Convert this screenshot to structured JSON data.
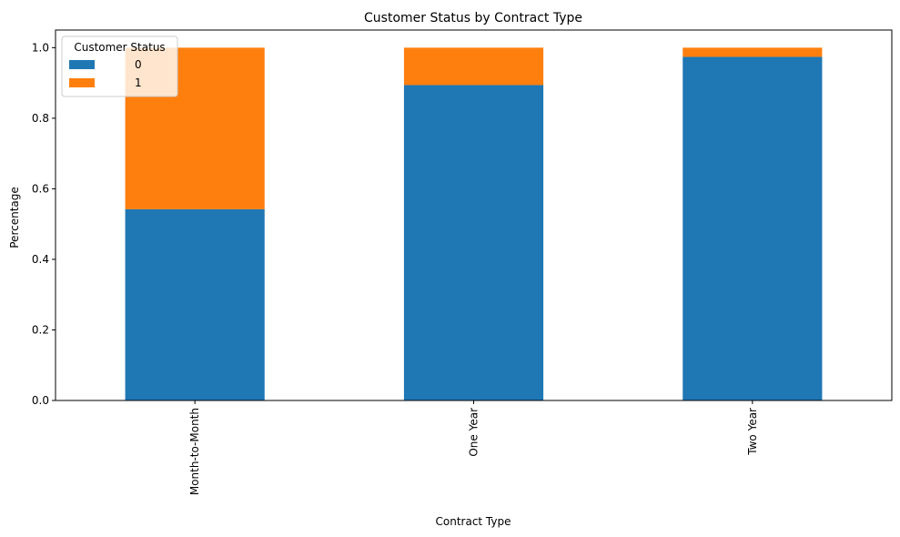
{
  "chart_data": {
    "type": "bar",
    "stacked": true,
    "title": "Customer Status by Contract Type",
    "xlabel": "Contract Type",
    "ylabel": "Percentage",
    "categories": [
      "Month-to-Month",
      "One Year",
      "Two Year"
    ],
    "series": [
      {
        "name": "0",
        "values": [
          0.542,
          0.894,
          0.974
        ],
        "color": "#1f77b4"
      },
      {
        "name": "1",
        "values": [
          0.458,
          0.106,
          0.026
        ],
        "color": "#ff7f0e"
      }
    ],
    "ylim": [
      0,
      1.05
    ],
    "yticks": [
      "0.0",
      "0.2",
      "0.4",
      "0.6",
      "0.8",
      "1.0"
    ],
    "grid": false,
    "legend": {
      "title": "Customer Status",
      "position": "top-left"
    }
  }
}
